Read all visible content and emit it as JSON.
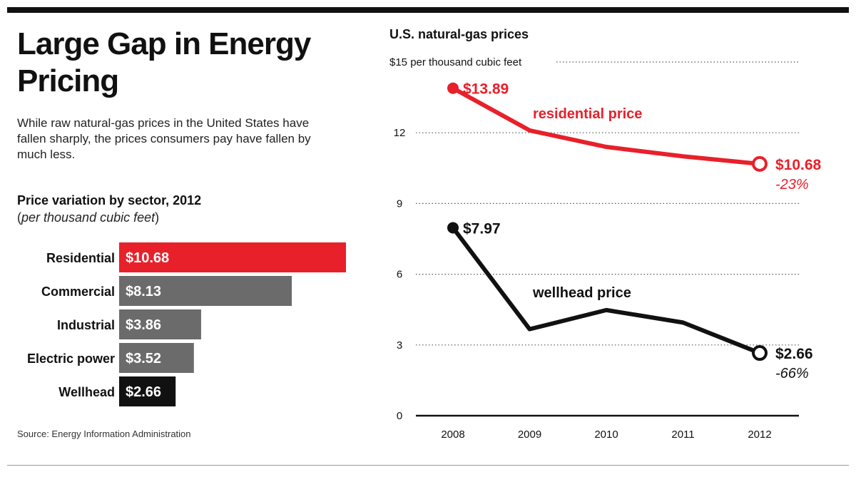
{
  "headline": "Large Gap in Energy Pricing",
  "dek": "While raw natural-gas prices in the United States have fallen sharply, the prices consumers pay have fallen by much less.",
  "source": "Source: Energy Information Administration",
  "colors": {
    "red": "#e8202a",
    "gray": "#6b6b6b",
    "black": "#111111"
  },
  "chart_data": [
    {
      "type": "bar",
      "title": "Price variation by sector, 2012",
      "subtitle": "per thousand cubic feet",
      "categories": [
        "Residential",
        "Commercial",
        "Industrial",
        "Electric power",
        "Wellhead"
      ],
      "values": [
        10.68,
        8.13,
        3.86,
        3.52,
        2.66
      ],
      "value_labels": [
        "$10.68",
        "$8.13",
        "$3.86",
        "$3.52",
        "$2.66"
      ],
      "bar_colors": [
        "#e8202a",
        "#6b6b6b",
        "#6b6b6b",
        "#6b6b6b",
        "#111111"
      ],
      "orientation": "horizontal"
    },
    {
      "type": "line",
      "title": "U.S. natural-gas prices",
      "x": [
        2008,
        2009,
        2010,
        2011,
        2012
      ],
      "x_tick_labels": [
        "2008",
        "2009",
        "2010",
        "2011",
        "2012"
      ],
      "ylim": [
        0,
        15
      ],
      "y_ticks": [
        0,
        3,
        6,
        9,
        12,
        15
      ],
      "y_tick_labels": [
        "0",
        "3",
        "6",
        "9",
        "12",
        "$15 per thousand cubic feet"
      ],
      "grid": "dotted horizontal",
      "series": [
        {
          "name": "residential price",
          "color": "#e8202a",
          "values": [
            13.89,
            12.1,
            11.4,
            11.0,
            10.68
          ],
          "start_label": "$13.89",
          "end_label": "$10.68",
          "end_change": "-23%"
        },
        {
          "name": "wellhead price",
          "color": "#111111",
          "values": [
            7.97,
            3.67,
            4.48,
            3.95,
            2.66
          ],
          "start_label": "$7.97",
          "end_label": "$2.66",
          "end_change": "-66%"
        }
      ]
    }
  ]
}
